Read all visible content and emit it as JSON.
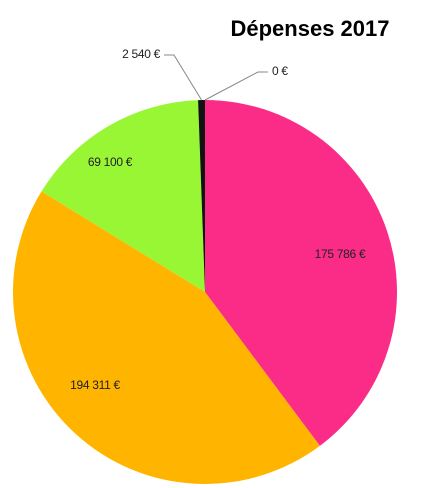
{
  "chart_data": {
    "type": "pie",
    "title": "Dépenses 2017",
    "values": [
      175786,
      194311,
      69100,
      2540,
      0
    ],
    "value_labels": [
      "175 786 €",
      "194 311 €",
      "69 100 €",
      "2 540 €",
      "0 €"
    ],
    "colors": [
      "#fa2c87",
      "#ffb500",
      "#99f634",
      "#111111",
      "#4f81bd"
    ]
  }
}
